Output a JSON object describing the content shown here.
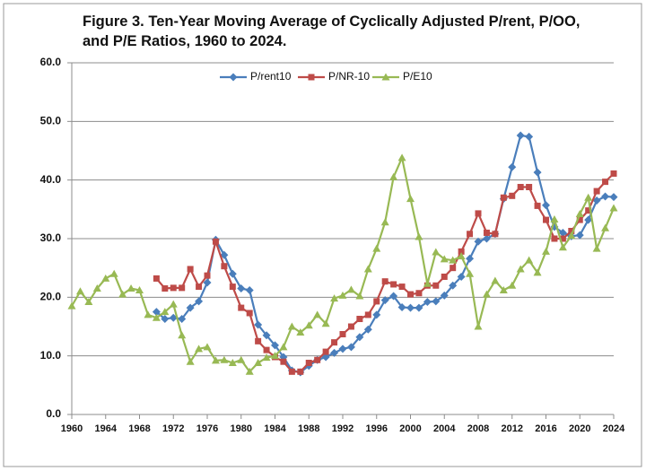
{
  "chart_data": {
    "type": "line",
    "title": "Figure 3.  Ten-Year Moving Average of Cyclically Adjusted P/rent, P/OO, and P/E Ratios, 1960 to 2024.",
    "x": [
      1960,
      1961,
      1962,
      1963,
      1964,
      1965,
      1966,
      1967,
      1968,
      1969,
      1970,
      1971,
      1972,
      1973,
      1974,
      1975,
      1976,
      1977,
      1978,
      1979,
      1980,
      1981,
      1982,
      1983,
      1984,
      1985,
      1986,
      1987,
      1988,
      1989,
      1990,
      1991,
      1992,
      1993,
      1994,
      1995,
      1996,
      1997,
      1998,
      1999,
      2000,
      2001,
      2002,
      2003,
      2004,
      2005,
      2006,
      2007,
      2008,
      2009,
      2010,
      2011,
      2012,
      2013,
      2014,
      2015,
      2016,
      2017,
      2018,
      2019,
      2020,
      2021,
      2022,
      2023,
      2024
    ],
    "series": [
      {
        "name": "P/rent10",
        "color": "#4a7ebb",
        "marker": "diamond",
        "values": [
          null,
          null,
          null,
          null,
          null,
          null,
          null,
          null,
          null,
          null,
          17.5,
          16.3,
          16.5,
          16.3,
          18.2,
          19.3,
          22.5,
          29.8,
          27.2,
          24,
          21.5,
          21.2,
          15.3,
          13.5,
          11.8,
          9.8,
          7.5,
          7.2,
          8.3,
          9.3,
          9.8,
          10.5,
          11.2,
          11.5,
          13.2,
          14.5,
          17,
          19.5,
          20.2,
          18.3,
          18.2,
          18.2,
          19.2,
          19.3,
          20.3,
          22,
          23.5,
          26.6,
          29.5,
          30,
          30.8,
          36.8,
          42.2,
          47.6,
          47.4,
          41.3,
          35.7,
          32,
          31,
          30.4,
          30.6,
          33.2,
          36.5,
          37.2,
          37.1
        ]
      },
      {
        "name": "P/NR-10",
        "color": "#be4b48",
        "marker": "square",
        "values": [
          null,
          null,
          null,
          null,
          null,
          null,
          null,
          null,
          null,
          null,
          23.2,
          21.5,
          21.6,
          21.6,
          24.8,
          21.8,
          23.7,
          29.5,
          25.3,
          21.8,
          18.2,
          17.3,
          12.5,
          11,
          9.8,
          9,
          7.3,
          7.3,
          8.8,
          9.3,
          10.7,
          12.3,
          13.7,
          15,
          16.3,
          17,
          19.3,
          22.7,
          22.2,
          21.8,
          20.5,
          20.7,
          22,
          22,
          23.5,
          25,
          27.8,
          30.8,
          34.3,
          31,
          30.8,
          37,
          37.3,
          38.8,
          38.8,
          35.6,
          33.2,
          30,
          30,
          31.3,
          33.2,
          34.8,
          38.1,
          39.7,
          41.1
        ]
      },
      {
        "name": "P/E10",
        "color": "#98b954",
        "marker": "triangle",
        "values": [
          18.5,
          21,
          19.2,
          21.5,
          23.2,
          24,
          20.5,
          21.5,
          21.2,
          17,
          16.5,
          17.5,
          18.8,
          13.5,
          9,
          11.2,
          11.5,
          9.2,
          9.3,
          8.8,
          9.3,
          7.3,
          8.8,
          9.7,
          10,
          11.5,
          15,
          14,
          15.2,
          17,
          15.5,
          19.8,
          20.3,
          21.3,
          20.2,
          24.8,
          28.3,
          32.8,
          40.5,
          43.8,
          36.8,
          30.3,
          22.3,
          27.7,
          26.5,
          26.3,
          27,
          24,
          15,
          20.5,
          22.8,
          21.2,
          22,
          24.8,
          26.3,
          24.2,
          27.8,
          33.3,
          28.5,
          30.5,
          34.2,
          37,
          28.3,
          31.8,
          35.2
        ]
      }
    ],
    "xlim": [
      1960,
      2024
    ],
    "xticks": [
      1960,
      1964,
      1968,
      1972,
      1976,
      1980,
      1984,
      1988,
      1992,
      1996,
      2000,
      2004,
      2008,
      2012,
      2016,
      2020,
      2024
    ],
    "ylim": [
      0,
      60
    ],
    "yticks": [
      {
        "value": 0,
        "label": "0.0"
      },
      {
        "value": 10,
        "label": "10.0"
      },
      {
        "value": 20,
        "label": "20.0"
      },
      {
        "value": 30,
        "label": "30.0"
      },
      {
        "value": 40,
        "label": "40.0"
      },
      {
        "value": 50,
        "label": "50.0"
      },
      {
        "value": 60,
        "label": "60.0"
      }
    ],
    "grid": true,
    "legend": "top"
  }
}
